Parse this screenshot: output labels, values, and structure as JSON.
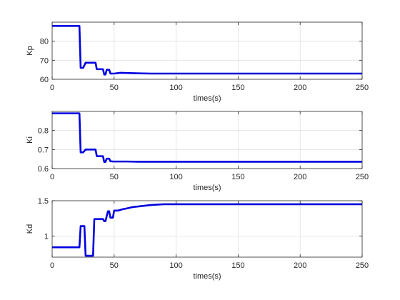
{
  "figure": {
    "background": "#ffffff",
    "line_color": "#0000e0",
    "grid_color": "#e0e0e0",
    "axis_color": "#262626"
  },
  "chart_data": [
    {
      "type": "line",
      "ylabel": "Kp",
      "xlabel": "times(s)",
      "xlim": [
        0,
        250
      ],
      "ylim": [
        60,
        90
      ],
      "xticks": [
        0,
        50,
        100,
        150,
        200,
        250
      ],
      "yticks": [
        60,
        70,
        80
      ],
      "grid": true,
      "series": [
        {
          "x": [
            0,
            22,
            23,
            25,
            27,
            28,
            35,
            36,
            41,
            42,
            43,
            44,
            46,
            47,
            48,
            49,
            50,
            55,
            60,
            70,
            80,
            250
          ],
          "y": [
            88,
            88,
            66,
            66,
            68.7,
            68.7,
            68.7,
            65.3,
            65.3,
            62.5,
            62.5,
            65,
            65,
            63,
            63,
            63,
            63,
            63.4,
            63.3,
            63.1,
            63,
            63
          ]
        }
      ]
    },
    {
      "type": "line",
      "ylabel": "Ki",
      "xlabel": "times(s)",
      "xlim": [
        0,
        250
      ],
      "ylim": [
        0.6,
        0.9
      ],
      "xticks": [
        0,
        50,
        100,
        150,
        200,
        250
      ],
      "yticks": [
        0.6,
        0.7,
        0.8
      ],
      "grid": true,
      "series": [
        {
          "x": [
            0,
            22,
            23,
            25,
            27,
            28,
            35,
            36,
            41,
            42,
            43,
            44,
            46,
            47,
            48,
            49,
            50,
            55,
            60,
            70,
            80,
            250
          ],
          "y": [
            0.89,
            0.89,
            0.685,
            0.685,
            0.7,
            0.7,
            0.7,
            0.665,
            0.665,
            0.635,
            0.635,
            0.652,
            0.652,
            0.638,
            0.638,
            0.637,
            0.637,
            0.637,
            0.637,
            0.636,
            0.636,
            0.636
          ]
        }
      ]
    },
    {
      "type": "line",
      "ylabel": "Kd",
      "xlabel": "times(s)",
      "xlim": [
        0,
        250
      ],
      "ylim": [
        0.7,
        1.5
      ],
      "xticks": [
        0,
        50,
        100,
        150,
        200,
        250
      ],
      "yticks": [
        1,
        1.5
      ],
      "grid": true,
      "series": [
        {
          "x": [
            0,
            22,
            23,
            26,
            27,
            28,
            33,
            34,
            35,
            41,
            42,
            43,
            45,
            46,
            47,
            49,
            50,
            51,
            52,
            53,
            55,
            57,
            60,
            65,
            70,
            75,
            80,
            85,
            90,
            100,
            250
          ],
          "y": [
            0.84,
            0.84,
            1.14,
            1.14,
            0.72,
            0.72,
            0.72,
            1.24,
            1.24,
            1.24,
            1.21,
            1.21,
            1.35,
            1.35,
            1.26,
            1.26,
            1.36,
            1.36,
            1.36,
            1.36,
            1.37,
            1.38,
            1.39,
            1.41,
            1.42,
            1.43,
            1.44,
            1.445,
            1.45,
            1.45,
            1.45
          ]
        }
      ]
    }
  ]
}
